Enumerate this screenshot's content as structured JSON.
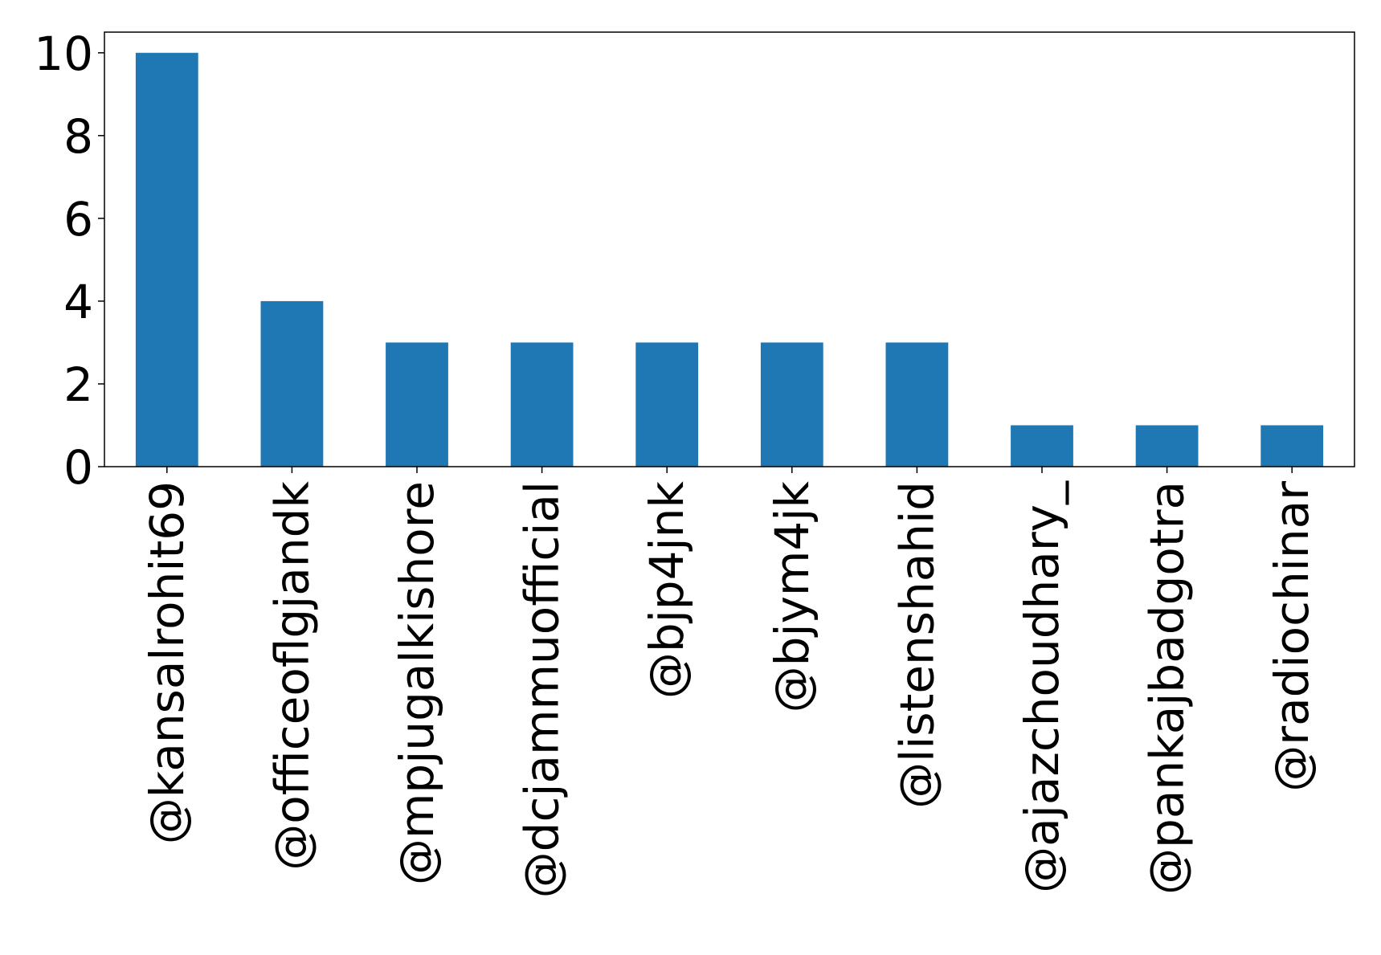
{
  "chart_data": {
    "type": "bar",
    "title": "",
    "xlabel": "",
    "ylabel": "",
    "categories": [
      "@kansalrohit69",
      "@officeoflgjandk",
      "@mpjugalkishore",
      "@dcjammuofficial",
      "@bjp4jnk",
      "@bjym4jk",
      "@listenshahid",
      "@ajazchoudhary_",
      "@pankajbadgotra",
      "@radiochinar"
    ],
    "values": [
      10,
      4,
      3,
      3,
      3,
      3,
      3,
      1,
      1,
      1
    ],
    "ylim": [
      0,
      10.5
    ],
    "yticks": [
      0,
      2,
      4,
      6,
      8,
      10
    ],
    "grid": false,
    "legend": "none",
    "bar_color": "#1f77b4"
  }
}
